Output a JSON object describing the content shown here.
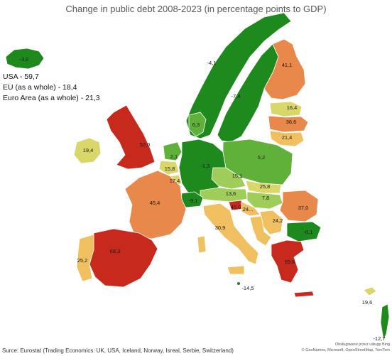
{
  "title": "Change in public debt 2008-2023 (in percentage points to GDP)",
  "legend": [
    "USA - 59,7",
    "EU (as a whole) - 18,4",
    "Euro Area (as a whole) - 21,3"
  ],
  "source": "Surce: Eurostat (Trading Economics: UK, USA, Iceland, Norway, Isreal, Serbie, Switzerland)",
  "credit_line1": "Obsługiwane przez usługę Bing",
  "credit_line2": "© GeoNames, Microsoft, OpenStreetMap, TomTom",
  "colors": {
    "dark_green": "#1e8a1e",
    "green": "#5fb13a",
    "light_green": "#9fcd5a",
    "yellow": "#d9d66a",
    "light_orange": "#f0c060",
    "orange": "#e8884a",
    "red": "#c8291d"
  },
  "countries": [
    {
      "name": "Iceland",
      "value": "-3,0"
    },
    {
      "name": "Norway",
      "value": "-4,1"
    },
    {
      "name": "Sweden",
      "value": "-7,4"
    },
    {
      "name": "Finland",
      "value": "41,1"
    },
    {
      "name": "Estonia",
      "value": "16,4"
    },
    {
      "name": "Latvia",
      "value": "36,6"
    },
    {
      "name": "Lithuania",
      "value": "21,4"
    },
    {
      "name": "Denmark",
      "value": "6,3"
    },
    {
      "name": "United Kingdom",
      "value": "52,0"
    },
    {
      "name": "Ireland",
      "value": "19,4"
    },
    {
      "name": "Netherlands",
      "value": "2,1"
    },
    {
      "name": "Belgium",
      "value": "15,8"
    },
    {
      "name": "Luxembourg",
      "value": "17,4"
    },
    {
      "name": "Germany",
      "value": "-1,3"
    },
    {
      "name": "Poland",
      "value": "5,2"
    },
    {
      "name": "Czechia",
      "value": "15,1"
    },
    {
      "name": "Slovakia",
      "value": "25,8"
    },
    {
      "name": "Austria",
      "value": "13,6"
    },
    {
      "name": "Hungary",
      "value": "7,8"
    },
    {
      "name": "Switzerland",
      "value": "-9,1"
    },
    {
      "name": "France",
      "value": "45,4"
    },
    {
      "name": "Slovenia",
      "value": "45,0"
    },
    {
      "name": "Croatia",
      "value": "24..."
    },
    {
      "name": "Romania",
      "value": "37,0"
    },
    {
      "name": "Serbia",
      "value": "24,2"
    },
    {
      "name": "Bulgaria",
      "value": "-0,1"
    },
    {
      "name": "Italy",
      "value": "30,9"
    },
    {
      "name": "Spain",
      "value": "68,3"
    },
    {
      "name": "Portugal",
      "value": "25,2"
    },
    {
      "name": "Greece",
      "value": "69,8"
    },
    {
      "name": "Malta",
      "value": "-14,5"
    },
    {
      "name": "Cyprus",
      "value": "19,6"
    },
    {
      "name": "Israel",
      "value": "-12,7"
    }
  ]
}
